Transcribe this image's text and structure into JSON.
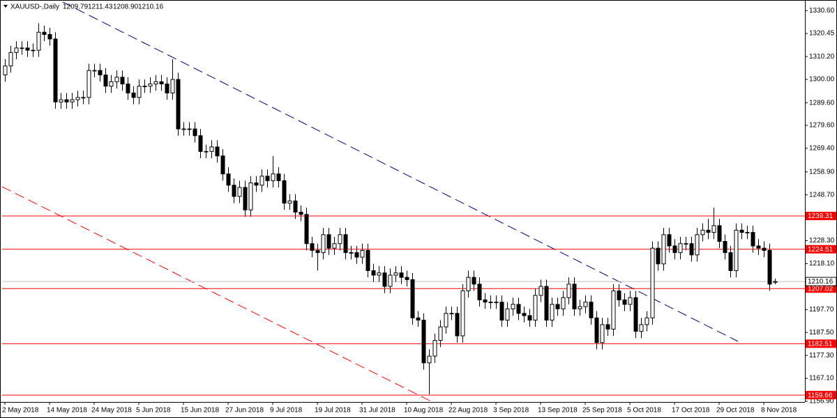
{
  "chart_data": {
    "type": "candlestick",
    "title": "XAUUSD-,Daily",
    "info_labels": [
      "1209.79",
      "1211.43",
      "1208.90",
      "1210.16"
    ],
    "categories": [
      "2 May 2018",
      null,
      null,
      null,
      null,
      null,
      null,
      null,
      "14 May 2018",
      null,
      null,
      null,
      null,
      null,
      null,
      null,
      "24 May 2018",
      null,
      null,
      null,
      null,
      null,
      null,
      null,
      "5 Jun 2018",
      null,
      null,
      null,
      null,
      null,
      null,
      null,
      "15 Jun 2018",
      null,
      null,
      null,
      null,
      null,
      null,
      null,
      "27 Jun 2018",
      null,
      null,
      null,
      null,
      null,
      null,
      null,
      "9 Jul 2018",
      null,
      null,
      null,
      null,
      null,
      null,
      null,
      "19 Jul 2018",
      null,
      null,
      null,
      null,
      null,
      null,
      null,
      "31 Jul 2018",
      null,
      null,
      null,
      null,
      null,
      null,
      null,
      "10 Aug 2018",
      null,
      null,
      null,
      null,
      null,
      null,
      null,
      "22 Aug 2018",
      null,
      null,
      null,
      null,
      null,
      null,
      null,
      "3 Sep 2018",
      null,
      null,
      null,
      null,
      null,
      null,
      null,
      "13 Sep 2018",
      null,
      null,
      null,
      null,
      null,
      null,
      null,
      "25 Sep 2018",
      null,
      null,
      null,
      null,
      null,
      null,
      null,
      "5 Oct 2018",
      null,
      null,
      null,
      null,
      null,
      null,
      null,
      "17 Oct 2018",
      null,
      null,
      null,
      null,
      null,
      null,
      null,
      "29 Oct 2018",
      null,
      null,
      null,
      null,
      null,
      null,
      null,
      "8 Nov 2018",
      null,
      null
    ],
    "open": [
      1302,
      1306,
      1312,
      1314,
      1314,
      1313,
      1313,
      1321,
      1320,
      1318,
      1290,
      1291,
      1290,
      1291,
      1292,
      1292,
      1304,
      1304,
      1302,
      1297,
      1299,
      1301,
      1298,
      1294,
      1292,
      1297,
      1297,
      1298,
      1299,
      1298,
      1294,
      1300,
      1278,
      1278,
      1278,
      1275,
      1268,
      1268,
      1270,
      1266,
      1258,
      1253,
      1248,
      1252,
      1242,
      1254,
      1253,
      1257,
      1255,
      1258,
      1255,
      1245,
      1246,
      1241,
      1240,
      1227,
      1224,
      1223,
      1231,
      1225,
      1227,
      1231,
      1223,
      1223,
      1221,
      1224,
      1215,
      1213,
      1214,
      1208,
      1213,
      1214,
      1212,
      1211,
      1194,
      1193,
      1174,
      1177,
      1184,
      1190,
      1196,
      1196,
      1186,
      1206,
      1212,
      1209,
      1202,
      1201,
      1201,
      1201,
      1193,
      1198,
      1200,
      1196,
      1195,
      1193,
      1204,
      1208,
      1193,
      1200,
      1198,
      1203,
      1209,
      1198,
      1199,
      1201,
      1194,
      1183,
      1191,
      1189,
      1206,
      1202,
      1200,
      1203,
      1188,
      1191,
      1194,
      1225,
      1218,
      1231,
      1226,
      1223,
      1227,
      1227,
      1222,
      1231,
      1233,
      1232,
      1235,
      1228,
      1223,
      1215,
      1233,
      1232,
      1232,
      1226,
      1225,
      1224,
      1209.79
    ],
    "high": [
      1309,
      1315,
      1317,
      1317,
      1317,
      1316,
      1325,
      1324,
      1323,
      1321,
      1294,
      1294,
      1294,
      1295,
      1295,
      1307,
      1307,
      1307,
      1305,
      1302,
      1304,
      1304,
      1301,
      1297,
      1300,
      1300,
      1301,
      1302,
      1302,
      1301,
      1309,
      1303,
      1281,
      1281,
      1281,
      1278,
      1271,
      1273,
      1273,
      1269,
      1261,
      1256,
      1255,
      1255,
      1257,
      1257,
      1260,
      1260,
      1266,
      1261,
      1258,
      1249,
      1249,
      1244,
      1243,
      1230,
      1227,
      1234,
      1234,
      1230,
      1234,
      1234,
      1226,
      1226,
      1227,
      1227,
      1218,
      1217,
      1217,
      1216,
      1217,
      1217,
      1215,
      1214,
      1197,
      1196,
      1180,
      1187,
      1193,
      1199,
      1199,
      1199,
      1209,
      1215,
      1215,
      1212,
      1205,
      1204,
      1204,
      1204,
      1201,
      1203,
      1203,
      1199,
      1198,
      1207,
      1211,
      1211,
      1203,
      1203,
      1206,
      1212,
      1212,
      1202,
      1204,
      1204,
      1197,
      1194,
      1194,
      1209,
      1209,
      1205,
      1206,
      1206,
      1194,
      1197,
      1228,
      1228,
      1234,
      1234,
      1229,
      1230,
      1230,
      1230,
      1234,
      1236,
      1238,
      1243,
      1238,
      1231,
      1226,
      1236,
      1236,
      1235,
      1235,
      1229,
      1228,
      1227,
      1211.43
    ],
    "low": [
      1299,
      1303,
      1309,
      1311,
      1310,
      1310,
      1310,
      1317,
      1315,
      1287,
      1287,
      1287,
      1287,
      1288,
      1289,
      1289,
      1301,
      1299,
      1294,
      1294,
      1296,
      1295,
      1291,
      1289,
      1289,
      1294,
      1294,
      1295,
      1295,
      1291,
      1291,
      1275,
      1275,
      1275,
      1272,
      1265,
      1265,
      1265,
      1263,
      1255,
      1250,
      1245,
      1245,
      1239,
      1239,
      1250,
      1250,
      1252,
      1252,
      1252,
      1242,
      1242,
      1238,
      1237,
      1224,
      1221,
      1215,
      1220,
      1222,
      1222,
      1224,
      1220,
      1220,
      1218,
      1218,
      1212,
      1210,
      1210,
      1205,
      1205,
      1210,
      1209,
      1208,
      1191,
      1190,
      1171,
      1160,
      1174,
      1181,
      1187,
      1193,
      1183,
      1183,
      1203,
      1206,
      1199,
      1198,
      1198,
      1198,
      1190,
      1190,
      1195,
      1193,
      1192,
      1190,
      1190,
      1201,
      1190,
      1190,
      1195,
      1195,
      1200,
      1195,
      1195,
      1196,
      1191,
      1180,
      1180,
      1186,
      1186,
      1199,
      1197,
      1197,
      1185,
      1185,
      1188,
      1191,
      1215,
      1215,
      1223,
      1220,
      1220,
      1224,
      1219,
      1219,
      1228,
      1229,
      1229,
      1225,
      1220,
      1212,
      1212,
      1229,
      1229,
      1223,
      1222,
      1221,
      1206,
      1208.9
    ],
    "close": [
      1306,
      1312,
      1314,
      1314,
      1313,
      1313,
      1321,
      1320,
      1318,
      1290,
      1291,
      1290,
      1291,
      1292,
      1292,
      1304,
      1304,
      1302,
      1297,
      1299,
      1301,
      1298,
      1294,
      1292,
      1297,
      1297,
      1298,
      1299,
      1298,
      1294,
      1300,
      1278,
      1278,
      1278,
      1275,
      1268,
      1268,
      1270,
      1266,
      1258,
      1253,
      1248,
      1252,
      1242,
      1254,
      1253,
      1257,
      1255,
      1258,
      1255,
      1245,
      1246,
      1241,
      1240,
      1227,
      1224,
      1223,
      1231,
      1225,
      1227,
      1231,
      1223,
      1223,
      1221,
      1224,
      1215,
      1213,
      1214,
      1208,
      1213,
      1214,
      1212,
      1211,
      1194,
      1193,
      1174,
      1177,
      1184,
      1190,
      1196,
      1196,
      1186,
      1206,
      1212,
      1209,
      1202,
      1201,
      1201,
      1201,
      1193,
      1198,
      1200,
      1196,
      1195,
      1193,
      1204,
      1208,
      1193,
      1200,
      1198,
      1203,
      1209,
      1198,
      1199,
      1201,
      1194,
      1183,
      1191,
      1189,
      1206,
      1202,
      1200,
      1203,
      1188,
      1191,
      1194,
      1225,
      1218,
      1231,
      1226,
      1223,
      1227,
      1227,
      1222,
      1231,
      1233,
      1232,
      1235,
      1228,
      1223,
      1215,
      1233,
      1232,
      1232,
      1226,
      1225,
      1224,
      1209,
      1210.16
    ],
    "ylim": [
      1156.6,
      1334.4
    ],
    "yticks": [
      {
        "value": 1330.6,
        "label": "1330.60"
      },
      1320.45,
      {
        "value": 1310.2,
        "label": "1310.20"
      },
      {
        "value": 1300,
        "label": "1300.00"
      },
      {
        "value": 1289.6,
        "label": "1289.60"
      },
      {
        "value": 1279.6,
        "label": "1279.60"
      },
      {
        "value": 1269.4,
        "label": "1269.40"
      },
      {
        "value": 1258.9,
        "label": "1258.90"
      },
      {
        "value": 1248.7,
        "label": "1248.70"
      },
      {
        "value": 1228.3,
        "label": "1228.30"
      },
      {
        "value": 1218.1,
        "label": "1218.10"
      },
      {
        "value": 1197.7,
        "label": "1197.70"
      },
      {
        "value": 1187.5,
        "label": "1187.50"
      },
      {
        "value": 1177.3,
        "label": "1177.30"
      },
      {
        "value": 1167.1,
        "label": "1167.10"
      },
      {
        "value": 1156.9,
        "label": "1156.90"
      }
    ],
    "levels": [
      1239.31,
      1224.51,
      1207.02,
      1182.51,
      1159.66
    ],
    "level_color": "#ff0000",
    "last_color": "#c0c0c0",
    "up_color": "#ffffff",
    "down_color": "#000000"
  }
}
